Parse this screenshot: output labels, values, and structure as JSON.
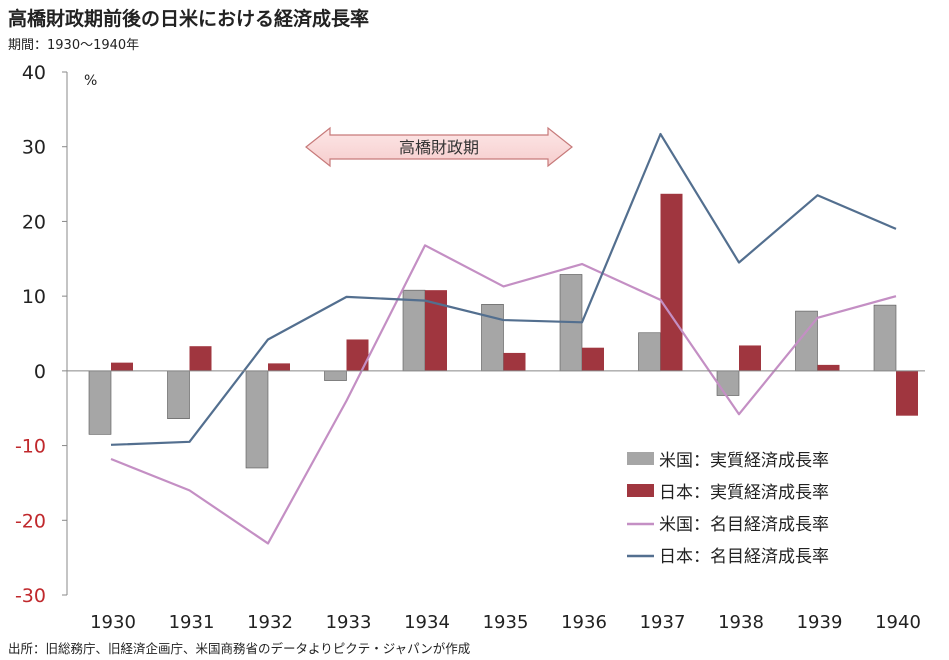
{
  "title": "高橋財政期前後の日米における経済成長率",
  "subtitle": "期間：1930～1940年",
  "source": "出所：旧総務庁、旧経済企画庁、米国商務省のデータよりピクテ・ジャパンが作成",
  "colors": {
    "us_bar": "#a6a6a6",
    "jp_bar": "#a0363f",
    "us_line": "#c48fc4",
    "jp_line": "#536f8f",
    "negative_tick": "#c0282c",
    "positive_tick": "#222222",
    "annotation_fill": "#f6cdcd",
    "annotation_stroke": "#c77a7a"
  },
  "chart_data": {
    "type": "bar",
    "title": "高橋財政期前後の日米における経済成長率",
    "ylabel": "%",
    "ylim": [
      -30,
      40
    ],
    "yticks": [
      40,
      30,
      20,
      10,
      0,
      -10,
      -20,
      -30
    ],
    "categories": [
      "1930",
      "1931",
      "1932",
      "1933",
      "1934",
      "1935",
      "1936",
      "1937",
      "1938",
      "1939",
      "1940"
    ],
    "series": [
      {
        "name": "米国：実質経済成長率",
        "type": "bar",
        "color": "#a6a6a6",
        "values": [
          -8.5,
          -6.4,
          -13,
          -1.3,
          10.8,
          8.9,
          12.9,
          5.1,
          -3.3,
          8.0,
          8.8
        ]
      },
      {
        "name": "日本：実質経済成長率",
        "type": "bar",
        "color": "#a0363f",
        "values": [
          1.1,
          3.3,
          1.0,
          4.2,
          10.8,
          2.4,
          3.1,
          23.7,
          3.4,
          0.8,
          -6.0
        ]
      },
      {
        "name": "米国：名目経済成長率",
        "type": "line",
        "color": "#c48fc4",
        "values": [
          -11.8,
          -16,
          -23.1,
          -4,
          16.8,
          11.3,
          14.3,
          9.5,
          -5.8,
          7.1,
          10.0
        ]
      },
      {
        "name": "日本：名目経済成長率",
        "type": "line",
        "color": "#536f8f",
        "values": [
          -9.9,
          -9.5,
          4.2,
          9.9,
          9.4,
          6.8,
          6.5,
          31.7,
          14.5,
          23.5,
          19.0
        ]
      }
    ],
    "annotation": {
      "label": "高橋財政期",
      "from": "1932",
      "to": "1935"
    },
    "legend_position": "bottom-right",
    "grid": false
  }
}
